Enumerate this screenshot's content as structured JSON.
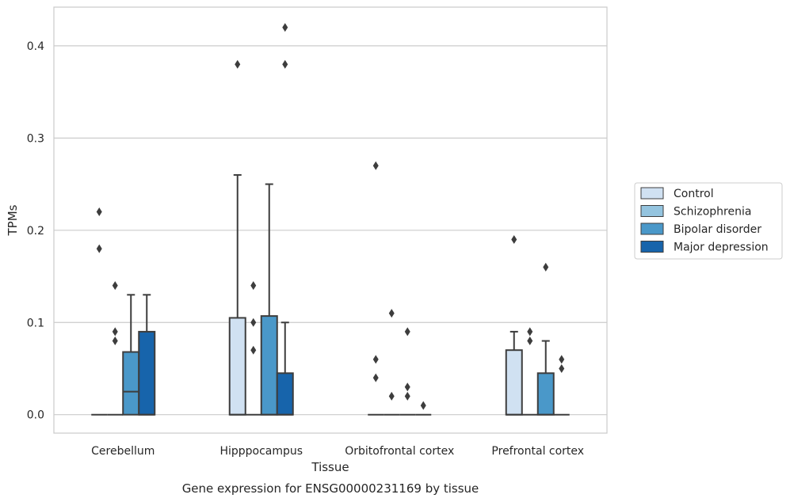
{
  "chart_data": {
    "type": "box",
    "xlabel": "Tissue",
    "ylabel": "TPMs",
    "caption": "Gene expression for ENSG00000231169 by tissue",
    "ylim": [
      -0.02,
      0.442
    ],
    "yticks": [
      0.0,
      0.1,
      0.2,
      0.3,
      0.4
    ],
    "ytick_labels": [
      "0.0",
      "0.1",
      "0.2",
      "0.3",
      "0.4"
    ],
    "grid": "horizontal",
    "legend_position": "right",
    "categories": [
      "Cerebellum",
      "Hipppocampus",
      "Orbitofrontal cortex",
      "Prefrontal cortex"
    ],
    "series": [
      {
        "name": "Control",
        "color": "#d0e1f2",
        "boxes": [
          {
            "q1": 0,
            "median": 0,
            "q3": 0,
            "whislo": 0,
            "whishi": 0,
            "fliers": [
              0.22,
              0.18
            ]
          },
          {
            "q1": 0,
            "median": 0,
            "q3": 0.105,
            "whislo": 0,
            "whishi": 0.26,
            "fliers": [
              0.38
            ]
          },
          {
            "q1": 0,
            "median": 0,
            "q3": 0,
            "whislo": 0,
            "whishi": 0,
            "fliers": [
              0.27,
              0.06,
              0.04
            ]
          },
          {
            "q1": 0,
            "median": 0,
            "q3": 0.07,
            "whislo": 0,
            "whishi": 0.09,
            "fliers": [
              0.19
            ]
          }
        ]
      },
      {
        "name": "Schizophrenia",
        "color": "#94c4df",
        "boxes": [
          {
            "q1": 0,
            "median": 0,
            "q3": 0,
            "whislo": 0,
            "whishi": 0,
            "fliers": [
              0.14,
              0.09,
              0.08
            ]
          },
          {
            "q1": 0,
            "median": 0,
            "q3": 0,
            "whislo": 0,
            "whishi": 0,
            "fliers": [
              0.14,
              0.1,
              0.07
            ]
          },
          {
            "q1": 0,
            "median": 0,
            "q3": 0,
            "whislo": 0,
            "whishi": 0,
            "fliers": [
              0.11,
              0.02
            ]
          },
          {
            "q1": 0,
            "median": 0,
            "q3": 0,
            "whislo": 0,
            "whishi": 0,
            "fliers": [
              0.09,
              0.08
            ]
          }
        ]
      },
      {
        "name": "Bipolar disorder",
        "color": "#4a98c9",
        "boxes": [
          {
            "q1": 0,
            "median": 0.025,
            "q3": 0.068,
            "whislo": 0,
            "whishi": 0.13,
            "fliers": []
          },
          {
            "q1": 0,
            "median": 0,
            "q3": 0.107,
            "whislo": 0,
            "whishi": 0.25,
            "fliers": []
          },
          {
            "q1": 0,
            "median": 0,
            "q3": 0,
            "whislo": 0,
            "whishi": 0,
            "fliers": [
              0.09,
              0.03,
              0.02
            ]
          },
          {
            "q1": 0,
            "median": 0,
            "q3": 0.045,
            "whislo": 0,
            "whishi": 0.08,
            "fliers": [
              0.16
            ]
          }
        ]
      },
      {
        "name": "Major depression",
        "color": "#1764ab",
        "boxes": [
          {
            "q1": 0,
            "median": 0,
            "q3": 0.09,
            "whislo": 0,
            "whishi": 0.13,
            "fliers": []
          },
          {
            "q1": 0,
            "median": 0,
            "q3": 0.045,
            "whislo": 0,
            "whishi": 0.1,
            "fliers": [
              0.42,
              0.38
            ]
          },
          {
            "q1": 0,
            "median": 0,
            "q3": 0,
            "whislo": 0,
            "whishi": 0,
            "fliers": [
              0.01
            ]
          },
          {
            "q1": 0,
            "median": 0,
            "q3": 0,
            "whislo": 0,
            "whishi": 0,
            "fliers": [
              0.06,
              0.05
            ]
          }
        ]
      }
    ]
  }
}
